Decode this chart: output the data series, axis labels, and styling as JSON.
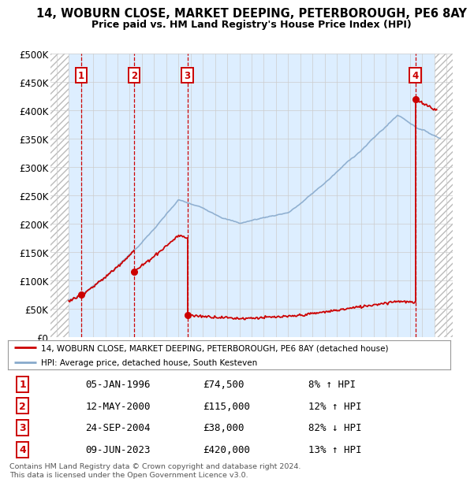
{
  "title": "14, WOBURN CLOSE, MARKET DEEPING, PETERBOROUGH, PE6 8AY",
  "subtitle": "Price paid vs. HM Land Registry's House Price Index (HPI)",
  "ylim": [
    0,
    500000
  ],
  "yticks": [
    0,
    50000,
    100000,
    150000,
    200000,
    250000,
    300000,
    350000,
    400000,
    450000,
    500000
  ],
  "ytick_labels": [
    "£0",
    "£50K",
    "£100K",
    "£150K",
    "£200K",
    "£250K",
    "£300K",
    "£350K",
    "£400K",
    "£450K",
    "£500K"
  ],
  "xlim_start": 1993.5,
  "xlim_end": 2026.5,
  "hatch_left_end": 1995.0,
  "hatch_right_start": 2025.0,
  "transactions": [
    {
      "num": 1,
      "year": 1996.03,
      "price": 74500,
      "date": "05-JAN-1996",
      "pct": "8%",
      "dir": "↑"
    },
    {
      "num": 2,
      "year": 2000.36,
      "price": 115000,
      "date": "12-MAY-2000",
      "pct": "12%",
      "dir": "↑"
    },
    {
      "num": 3,
      "year": 2004.73,
      "price": 38000,
      "date": "24-SEP-2004",
      "pct": "82%",
      "dir": "↓"
    },
    {
      "num": 4,
      "year": 2023.44,
      "price": 420000,
      "date": "09-JUN-2023",
      "pct": "13%",
      "dir": "↑"
    }
  ],
  "legend_line1": "14, WOBURN CLOSE, MARKET DEEPING, PETERBOROUGH, PE6 8AY (detached house)",
  "legend_line2": "HPI: Average price, detached house, South Kesteven",
  "footer1": "Contains HM Land Registry data © Crown copyright and database right 2024.",
  "footer2": "This data is licensed under the Open Government Licence v3.0.",
  "red_color": "#cc0000",
  "blue_color": "#88aacc",
  "grid_color": "#cccccc",
  "hatch_color": "#bbbbbb",
  "background_chart": "#ddeeff"
}
